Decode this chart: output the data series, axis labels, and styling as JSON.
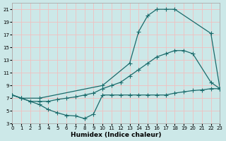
{
  "xlabel": "Humidex (Indice chaleur)",
  "bg_color": "#cce8e8",
  "grid_color": "#f0c0c0",
  "line_color": "#1a6b6b",
  "xlim": [
    0,
    23
  ],
  "ylim": [
    3,
    22
  ],
  "xticks": [
    0,
    1,
    2,
    3,
    4,
    5,
    6,
    7,
    8,
    9,
    10,
    11,
    12,
    13,
    14,
    15,
    16,
    17,
    18,
    19,
    20,
    21,
    22,
    23
  ],
  "yticks": [
    3,
    5,
    7,
    9,
    11,
    13,
    15,
    17,
    19,
    21
  ],
  "line1_x": [
    0,
    1,
    3,
    10,
    13,
    14,
    15,
    16,
    17,
    18,
    22,
    23
  ],
  "line1_y": [
    7.5,
    7.0,
    7.0,
    9.0,
    12.5,
    17.5,
    20.0,
    21.0,
    21.0,
    21.0,
    17.2,
    8.5
  ],
  "line2_x": [
    0,
    1,
    2,
    3,
    4,
    5,
    6,
    7,
    8,
    9,
    10,
    11,
    12,
    13,
    14,
    15,
    16,
    17,
    18,
    19,
    20,
    22,
    23
  ],
  "line2_y": [
    7.5,
    7.0,
    6.5,
    6.5,
    6.5,
    6.8,
    7.0,
    7.2,
    7.5,
    7.8,
    8.5,
    9.0,
    9.5,
    10.5,
    11.5,
    12.5,
    13.5,
    14.0,
    14.5,
    14.5,
    14.0,
    9.5,
    8.5
  ],
  "line3_x": [
    0,
    1,
    2,
    3,
    4,
    5,
    6,
    7,
    8,
    9,
    10,
    11,
    12,
    13,
    14,
    15,
    16,
    17,
    18,
    19,
    20,
    21,
    22,
    23
  ],
  "line3_y": [
    7.5,
    7.0,
    6.5,
    6.0,
    5.2,
    4.7,
    4.3,
    4.2,
    3.8,
    4.5,
    7.5,
    7.5,
    7.5,
    7.5,
    7.5,
    7.5,
    7.5,
    7.5,
    7.8,
    8.0,
    8.2,
    8.3,
    8.5,
    8.5
  ]
}
